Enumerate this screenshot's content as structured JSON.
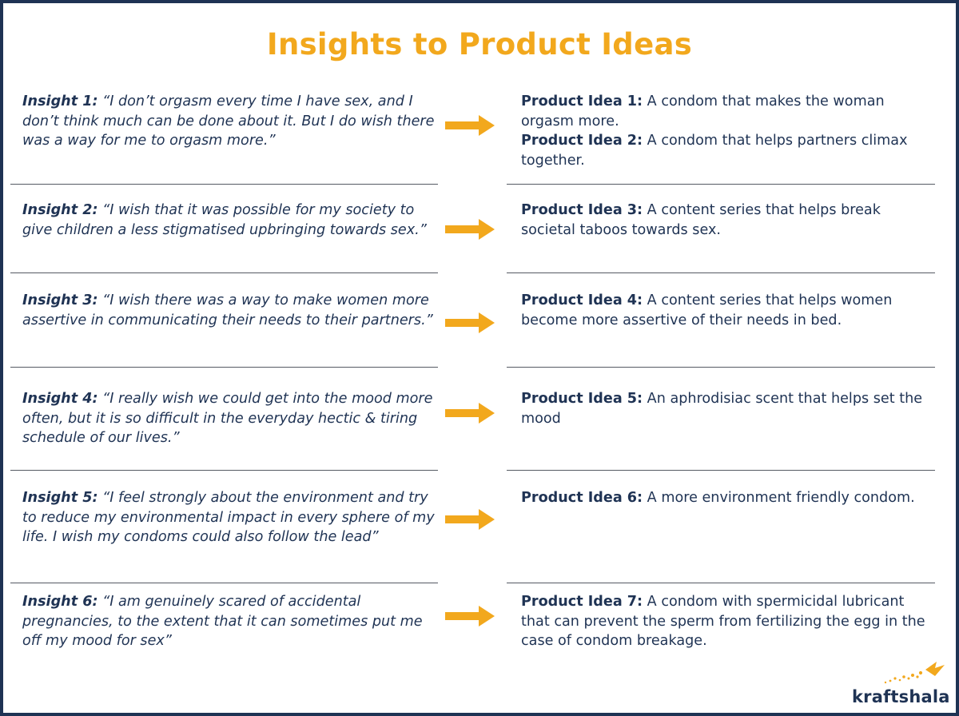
{
  "title": "Insights to Product Ideas",
  "accent_color": "#f2a81d",
  "text_color": "#1f3354",
  "rows": [
    {
      "insight_label": "Insight 1:",
      "insight_text": " “I don’t orgasm every time I have sex, and I don’t think much can be done about it. But I do wish there was a way for me to orgasm more.”",
      "ideas": [
        {
          "label": "Product Idea 1:",
          "text": " A condom that makes the woman orgasm more."
        },
        {
          "label": "Product Idea 2:",
          "text": " A condom that helps partners climax together."
        }
      ]
    },
    {
      "insight_label": "Insight 2:",
      "insight_text": " “I wish that it was possible for my society to give children a less stigmatised upbringing towards sex.”",
      "ideas": [
        {
          "label": "Product Idea 3:",
          "text": " A content series that helps break societal taboos towards sex."
        }
      ]
    },
    {
      "insight_label": "Insight 3:",
      "insight_text": " “I wish there was a way to make women more assertive in communicating their needs to their partners.”",
      "ideas": [
        {
          "label": "Product Idea 4:",
          "text": " A content series that helps women become more assertive of their needs in bed."
        }
      ]
    },
    {
      "insight_label": "Insight 4:",
      "insight_text": " “I really wish we could get into the mood more often, but it is so difficult in the everyday hectic & tiring schedule of our lives.”",
      "ideas": [
        {
          "label": "Product Idea 5:",
          "text": " An aphrodisiac scent that helps set the mood"
        }
      ]
    },
    {
      "insight_label": "Insight 5:",
      "insight_text": " “I feel strongly about the environment and try to reduce my environmental impact in every sphere of my life. I wish my condoms could also follow the lead”",
      "ideas": [
        {
          "label": "Product Idea 6:",
          "text": " A more environment friendly condom."
        }
      ]
    },
    {
      "insight_label": "Insight 6:",
      "insight_text": " “I am genuinely scared of accidental pregnancies, to the extent that it can sometimes put me off my mood for sex”",
      "ideas": [
        {
          "label": "Product Idea 7:",
          "text": " A condom with spermicidal lubricant that can prevent the sperm from fertilizing the egg in the case of condom breakage."
        }
      ]
    }
  ],
  "logo": {
    "text": "kraftshala",
    "icon": "bird-icon"
  }
}
